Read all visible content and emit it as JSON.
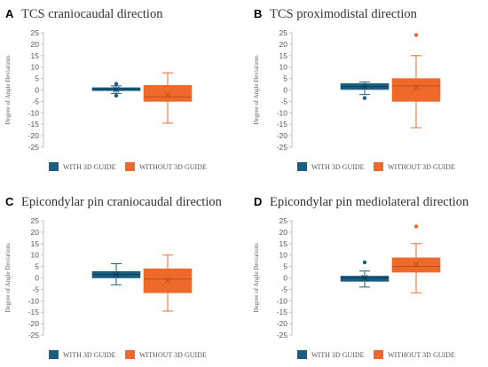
{
  "colors": {
    "with": "#1b5e80",
    "without": "#ef6a2a",
    "axis": "#bfbfbf"
  },
  "legend": {
    "with": "WITH 3D GUIDE",
    "without": "WITHOUT 3D GUIDE"
  },
  "chart_data": [
    {
      "type": "box",
      "panel": "A",
      "title": "TCS craniocaudal direction",
      "ylabel": "Degree of Angle Deviations",
      "ylim": [
        -25,
        25
      ],
      "yticks": [
        25,
        20,
        15,
        10,
        5,
        0,
        -5,
        -10,
        -15,
        -20,
        -25
      ],
      "series": [
        {
          "name": "WITH 3D GUIDE",
          "whisker_low": -1.5,
          "q1": -0.3,
          "median": 0.3,
          "q3": 1.0,
          "whisker_high": 1.8,
          "mean": 0.2,
          "outliers": [
            -2.5,
            2.7
          ]
        },
        {
          "name": "WITHOUT 3D GUIDE",
          "whisker_low": -14.5,
          "q1": -5.0,
          "median": -3.0,
          "q3": 2.0,
          "whisker_high": 7.5,
          "mean": -2.0,
          "outliers": []
        }
      ]
    },
    {
      "type": "box",
      "panel": "B",
      "title": "TCS proximodistal direction",
      "ylabel": "Degree of Angle Deviations",
      "ylim": [
        -25,
        25
      ],
      "yticks": [
        25,
        20,
        15,
        10,
        5,
        0,
        -5,
        -10,
        -15,
        -20,
        -25
      ],
      "series": [
        {
          "name": "WITH 3D GUIDE",
          "whisker_low": -2.0,
          "q1": 0.2,
          "median": 1.5,
          "q3": 2.8,
          "whisker_high": 3.5,
          "mean": 1.5,
          "outliers": [
            -3.5
          ]
        },
        {
          "name": "WITHOUT 3D GUIDE",
          "whisker_low": -16.5,
          "q1": -5.0,
          "median": 1.8,
          "q3": 5.0,
          "whisker_high": 15.0,
          "mean": 1.0,
          "outliers": [
            24.0
          ]
        }
      ]
    },
    {
      "type": "box",
      "panel": "C",
      "title": "Epicondylar pin craniocaudal direction",
      "ylabel": "Degree of Angle Deviations",
      "ylim": [
        -25,
        25
      ],
      "yticks": [
        25,
        20,
        15,
        10,
        5,
        0,
        -5,
        -10,
        -15,
        -20,
        -25
      ],
      "series": [
        {
          "name": "WITH 3D GUIDE",
          "whisker_low": -3.0,
          "q1": 0.0,
          "median": 1.5,
          "q3": 2.8,
          "whisker_high": 6.2,
          "mean": 1.5,
          "outliers": []
        },
        {
          "name": "WITHOUT 3D GUIDE",
          "whisker_low": -14.5,
          "q1": -6.5,
          "median": -0.5,
          "q3": 4.0,
          "whisker_high": 10.0,
          "mean": -1.0,
          "outliers": []
        }
      ]
    },
    {
      "type": "box",
      "panel": "D",
      "title": "Epicondylar pin mediolateral direction",
      "ylabel": "Degree of Angle Deviations",
      "ylim": [
        -25,
        25
      ],
      "yticks": [
        25,
        20,
        15,
        10,
        5,
        0,
        -5,
        -10,
        -15,
        -20,
        -25
      ],
      "series": [
        {
          "name": "WITH 3D GUIDE",
          "whisker_low": -4.0,
          "q1": -1.5,
          "median": 0.0,
          "q3": 0.8,
          "whisker_high": 3.0,
          "mean": 0.0,
          "outliers": [
            6.8
          ]
        },
        {
          "name": "WITHOUT 3D GUIDE",
          "whisker_low": -6.5,
          "q1": 2.5,
          "median": 5.0,
          "q3": 8.8,
          "whisker_high": 15.0,
          "mean": 6.0,
          "outliers": [
            22.5
          ]
        }
      ]
    }
  ]
}
